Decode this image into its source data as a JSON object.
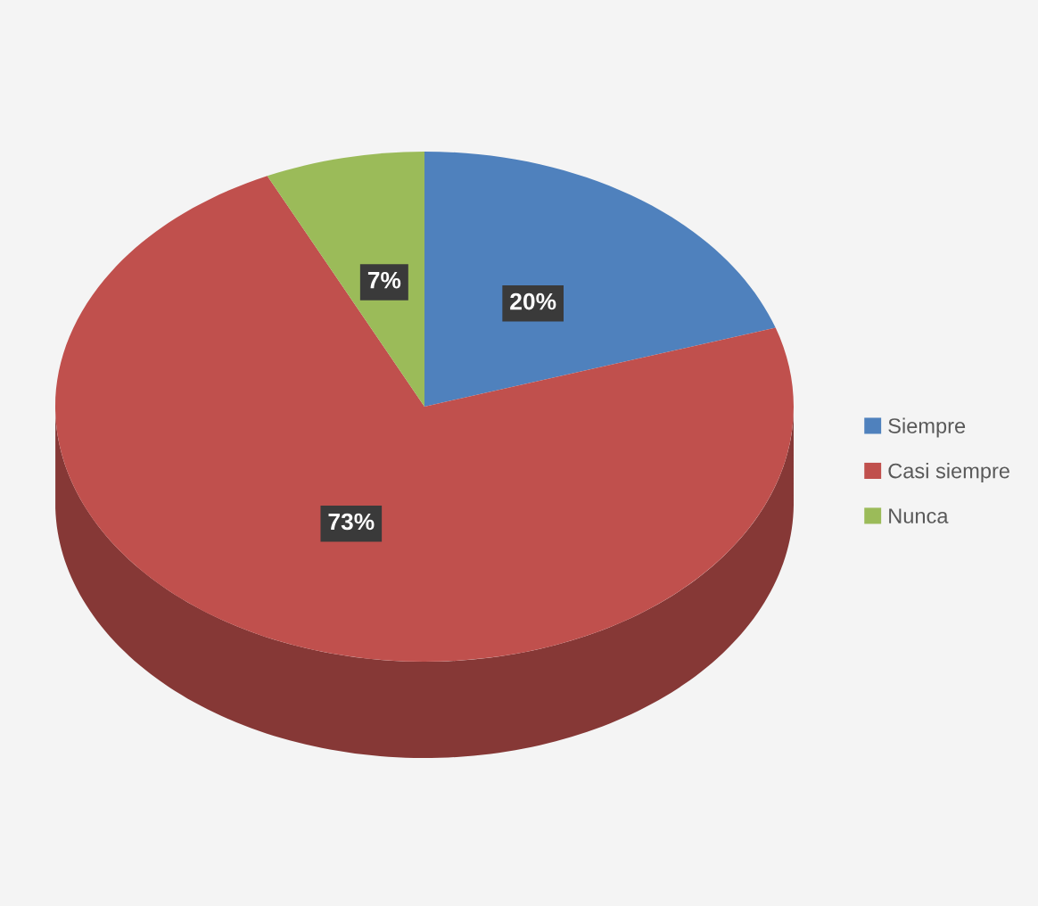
{
  "chart_data": {
    "type": "pie",
    "categories": [
      "Siempre",
      "Casi siempre",
      "Nunca"
    ],
    "values": [
      20,
      73,
      7
    ],
    "colors": [
      "#4f81bd",
      "#c0504d",
      "#9bbb59"
    ],
    "value_labels": [
      "20%",
      "73%",
      "7%"
    ],
    "legend": "right"
  }
}
